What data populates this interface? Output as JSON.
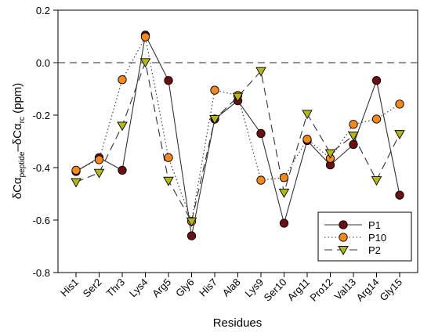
{
  "chart_data": {
    "type": "line",
    "title": "",
    "xlabel": "Residues",
    "ylabel": {
      "main": "δCα",
      "sub1": "peptide",
      "mid": "–δCα",
      "sub2": "rc",
      "unit": " (ppm)"
    },
    "categories": [
      "His1",
      "Ser2",
      "Thr3",
      "Lys4",
      "Arg5",
      "Gly6",
      "His7",
      "Ala8",
      "Lys9",
      "Ser10",
      "Arg11",
      "Pro12",
      "Val13",
      "Arg14",
      "Gly15"
    ],
    "ylim": [
      -0.8,
      0.2
    ],
    "yticks": [
      0.2,
      0.0,
      -0.2,
      -0.4,
      -0.6,
      -0.8
    ],
    "ytick_labels": [
      "0.2",
      "0.0",
      "-0.2",
      "-0.4",
      "-0.6",
      "-0.8"
    ],
    "reference_line": 0.0,
    "legend_position": "bottom-right",
    "series": [
      {
        "name": "P1",
        "line": "solid",
        "marker": "circle",
        "color": "#6b0f12",
        "values": [
          -0.415,
          -0.362,
          -0.41,
          0.105,
          -0.068,
          -0.66,
          -0.215,
          -0.145,
          -0.27,
          -0.612,
          -0.297,
          -0.39,
          -0.312,
          -0.068,
          -0.505
        ]
      },
      {
        "name": "P10",
        "line": "dotted",
        "marker": "circle",
        "color": "#f5891f",
        "values": [
          -0.41,
          -0.37,
          -0.065,
          0.098,
          -0.362,
          -0.605,
          -0.105,
          -0.125,
          -0.448,
          -0.438,
          -0.292,
          -0.365,
          -0.235,
          -0.215,
          -0.158
        ]
      },
      {
        "name": "P2",
        "line": "dashed",
        "marker": "triangle-down",
        "color": "#b2b71c",
        "values": [
          -0.455,
          -0.42,
          -0.24,
          0.002,
          -0.45,
          -0.605,
          -0.215,
          -0.13,
          -0.032,
          -0.495,
          -0.195,
          -0.345,
          -0.278,
          -0.448,
          -0.272
        ]
      }
    ]
  }
}
